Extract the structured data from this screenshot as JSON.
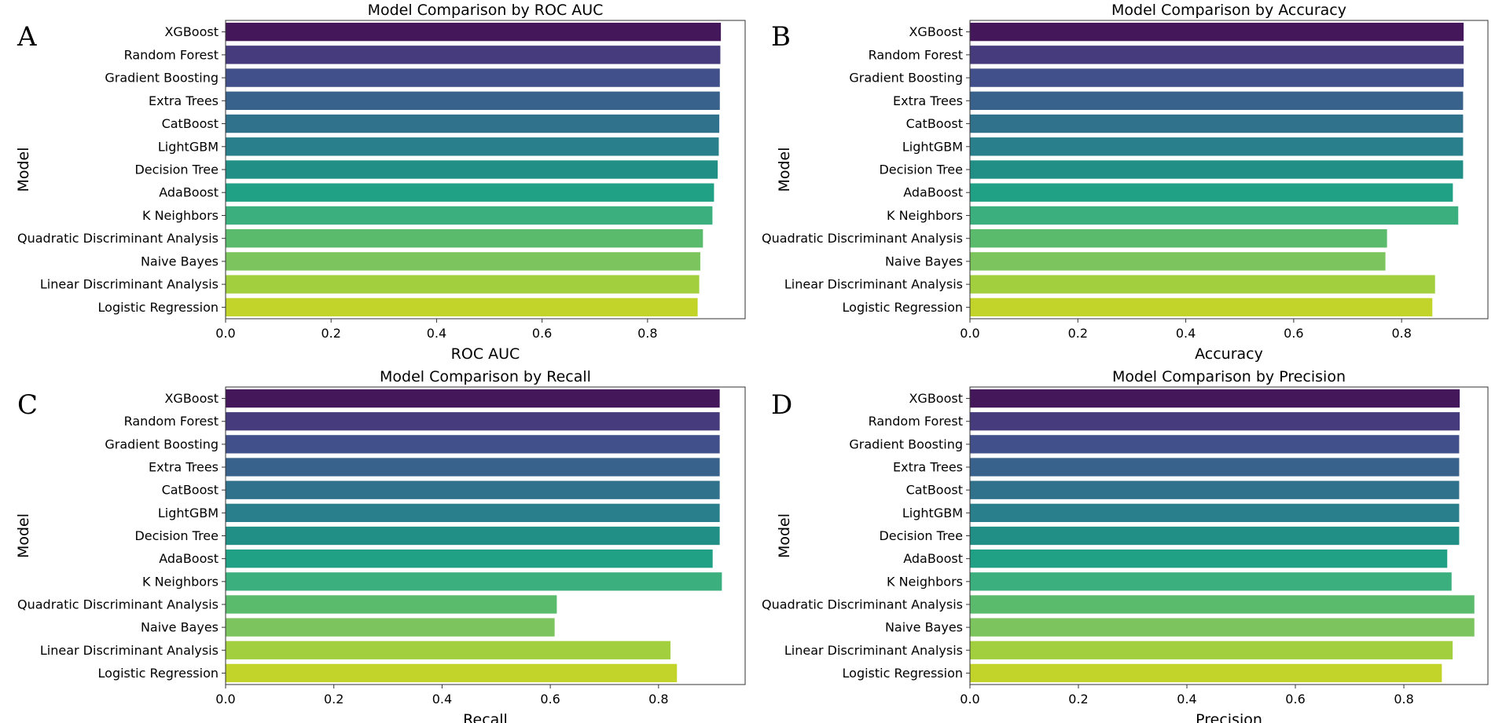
{
  "figure_name": "model-comparison-figure",
  "palette": [
    "#440154",
    "#472d7b",
    "#3b528b",
    "#2c728e",
    "#21918c",
    "#28ae80",
    "#5ec962",
    "#add825",
    "#c2d82f"
  ],
  "bar_colors": [
    "#44175a",
    "#463b7d",
    "#41508a",
    "#38628c",
    "#30728c",
    "#297f8c",
    "#228f87",
    "#20a186",
    "#3bb07e",
    "#5bbb6c",
    "#7cc45d",
    "#a1cf3e",
    "#c2d42a"
  ],
  "chart_data": [
    {
      "panel": "A",
      "type": "bar",
      "orientation": "horizontal",
      "title": "Model Comparison by ROC AUC",
      "xlabel": "ROC AUC",
      "ylabel": "Model",
      "xlim": [
        0,
        0.985
      ],
      "xticks": [
        "0.0",
        "0.2",
        "0.4",
        "0.6",
        "0.8"
      ],
      "xtick_values": [
        0,
        0.2,
        0.4,
        0.6,
        0.8
      ],
      "categories": [
        "XGBoost",
        "Random Forest",
        "Gradient Boosting",
        "Extra Trees",
        "CatBoost",
        "LightGBM",
        "Decision Tree",
        "AdaBoost",
        "K Neighbors",
        "Quadratic Discriminant Analysis",
        "Naive Bayes",
        "Linear Discriminant Analysis",
        "Logistic Regression"
      ],
      "values": [
        0.939,
        0.938,
        0.937,
        0.937,
        0.936,
        0.935,
        0.933,
        0.926,
        0.923,
        0.905,
        0.9,
        0.898,
        0.895
      ]
    },
    {
      "panel": "B",
      "type": "bar",
      "orientation": "horizontal",
      "title": "Model Comparison by Accuracy",
      "xlabel": "Accuracy",
      "ylabel": "Model",
      "xlim": [
        0,
        0.96
      ],
      "xticks": [
        "0.0",
        "0.2",
        "0.4",
        "0.6",
        "0.8"
      ],
      "xtick_values": [
        0,
        0.2,
        0.4,
        0.6,
        0.8
      ],
      "categories": [
        "XGBoost",
        "Random Forest",
        "Gradient Boosting",
        "Extra Trees",
        "CatBoost",
        "LightGBM",
        "Decision Tree",
        "AdaBoost",
        "K Neighbors",
        "Quadratic Discriminant Analysis",
        "Naive Bayes",
        "Linear Discriminant Analysis",
        "Logistic Regression"
      ],
      "values": [
        0.915,
        0.915,
        0.915,
        0.914,
        0.914,
        0.914,
        0.914,
        0.895,
        0.905,
        0.773,
        0.77,
        0.862,
        0.857
      ]
    },
    {
      "panel": "C",
      "type": "bar",
      "orientation": "horizontal",
      "title": "Model Comparison by Recall",
      "xlabel": "Recall",
      "ylabel": "Model",
      "xlim": [
        0,
        0.96
      ],
      "xticks": [
        "0.0",
        "0.2",
        "0.4",
        "0.6",
        "0.8"
      ],
      "xtick_values": [
        0,
        0.2,
        0.4,
        0.6,
        0.8
      ],
      "categories": [
        "XGBoost",
        "Random Forest",
        "Gradient Boosting",
        "Extra Trees",
        "CatBoost",
        "LightGBM",
        "Decision Tree",
        "AdaBoost",
        "K Neighbors",
        "Quadratic Discriminant Analysis",
        "Naive Bayes",
        "Linear Discriminant Analysis",
        "Logistic Regression"
      ],
      "values": [
        0.913,
        0.913,
        0.913,
        0.913,
        0.913,
        0.913,
        0.913,
        0.9,
        0.917,
        0.612,
        0.608,
        0.822,
        0.834
      ]
    },
    {
      "panel": "D",
      "type": "bar",
      "orientation": "horizontal",
      "title": "Model Comparison by Precision",
      "xlabel": "Precision",
      "ylabel": "Model",
      "xlim": [
        0,
        0.955
      ],
      "xticks": [
        "0.0",
        "0.2",
        "0.4",
        "0.6",
        "0.8"
      ],
      "xtick_values": [
        0,
        0.2,
        0.4,
        0.6,
        0.8
      ],
      "categories": [
        "XGBoost",
        "Random Forest",
        "Gradient Boosting",
        "Extra Trees",
        "CatBoost",
        "LightGBM",
        "Decision Tree",
        "AdaBoost",
        "K Neighbors",
        "Quadratic Discriminant Analysis",
        "Naive Bayes",
        "Linear Discriminant Analysis",
        "Logistic Regression"
      ],
      "values": [
        0.903,
        0.903,
        0.902,
        0.902,
        0.902,
        0.902,
        0.902,
        0.88,
        0.888,
        0.93,
        0.93,
        0.89,
        0.87
      ]
    }
  ]
}
